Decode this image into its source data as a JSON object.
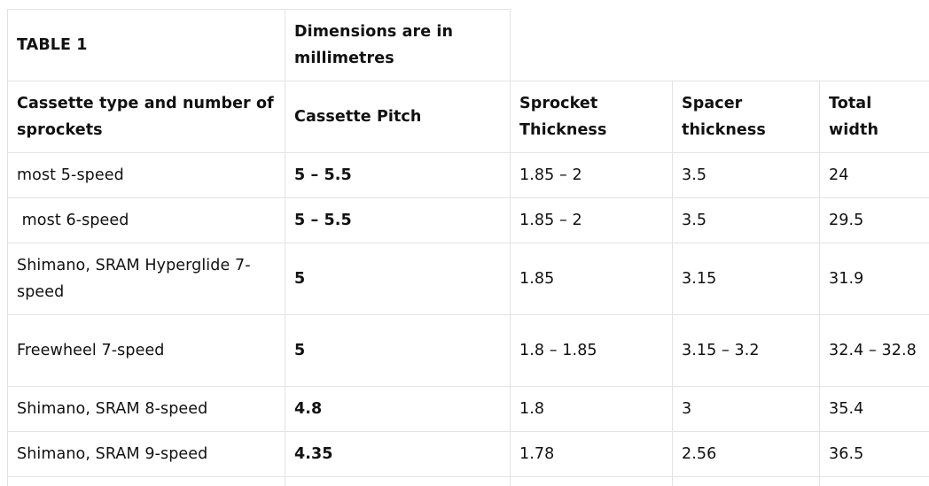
{
  "table": {
    "title": "TABLE 1",
    "note": "Dimensions are in millimetres",
    "headers": {
      "cassette_type": "Cassette type and number of sprockets",
      "pitch": "Cassette Pitch",
      "sprocket": "Sprocket Thickness",
      "spacer": "Spacer thickness",
      "total": "Total width"
    },
    "rows": [
      {
        "type": "most 5-speed",
        "pitch": "5 – 5.5",
        "sprocket": "1.85 – 2",
        "spacer": "3.5",
        "total": "24"
      },
      {
        "type": " most 6-speed",
        "pitch": "5 – 5.5",
        "sprocket": "1.85 – 2",
        "spacer": "3.5",
        "total": "29.5"
      },
      {
        "type": "Shimano, SRAM Hyperglide 7-speed",
        "pitch": "5",
        "sprocket": "1.85",
        "spacer": "3.15",
        "total": "31.9"
      },
      {
        "type": "Freewheel 7-speed",
        "pitch": "5",
        "sprocket": "1.8 – 1.85",
        "spacer": "3.15 – 3.2",
        "total": "32.4 – 32.8"
      },
      {
        "type": "Shimano, SRAM 8-speed",
        "pitch": "4.8",
        "sprocket": "1.8",
        "spacer": "3",
        "total": "35.4"
      },
      {
        "type": "Shimano, SRAM 9-speed",
        "pitch": "4.35",
        "sprocket": "1.78",
        "spacer": "2.56",
        "total": "36.5"
      }
    ]
  }
}
